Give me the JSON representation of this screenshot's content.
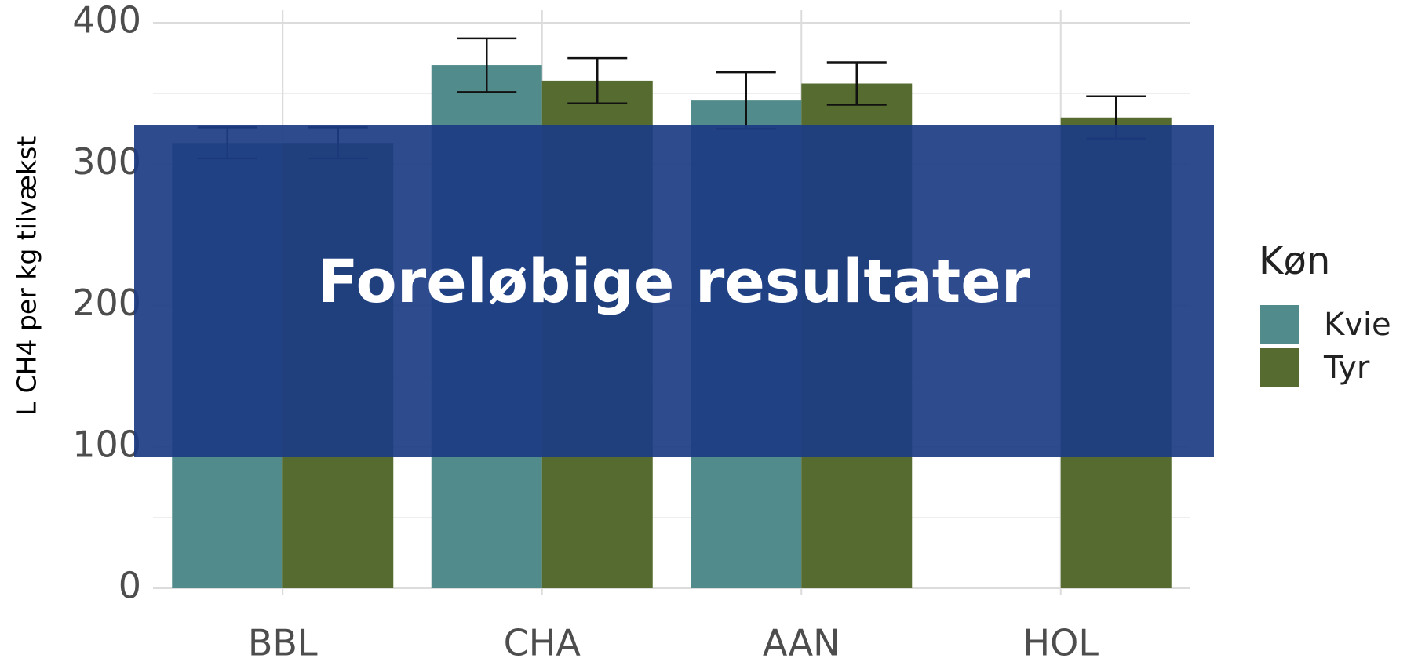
{
  "chart_data": {
    "type": "bar",
    "y_label": "L CH4 per kg tilvækst",
    "categories": [
      "BBL",
      "CHA",
      "AAN",
      "HOL"
    ],
    "series": [
      {
        "name": "Kvie",
        "color": "#528b8b",
        "values": [
          315,
          370,
          345,
          null
        ],
        "errors": [
          11,
          19,
          20,
          null
        ]
      },
      {
        "name": "Tyr",
        "color": "#556b2f",
        "values": [
          315,
          359,
          357,
          333
        ],
        "errors": [
          11,
          16,
          15,
          15
        ]
      }
    ],
    "ylim": [
      0,
      400
    ],
    "yticks": [
      0,
      100,
      200,
      300,
      400
    ],
    "grid": true,
    "legend_title": "Køn",
    "overlay_text": "Foreløbige resultater"
  }
}
